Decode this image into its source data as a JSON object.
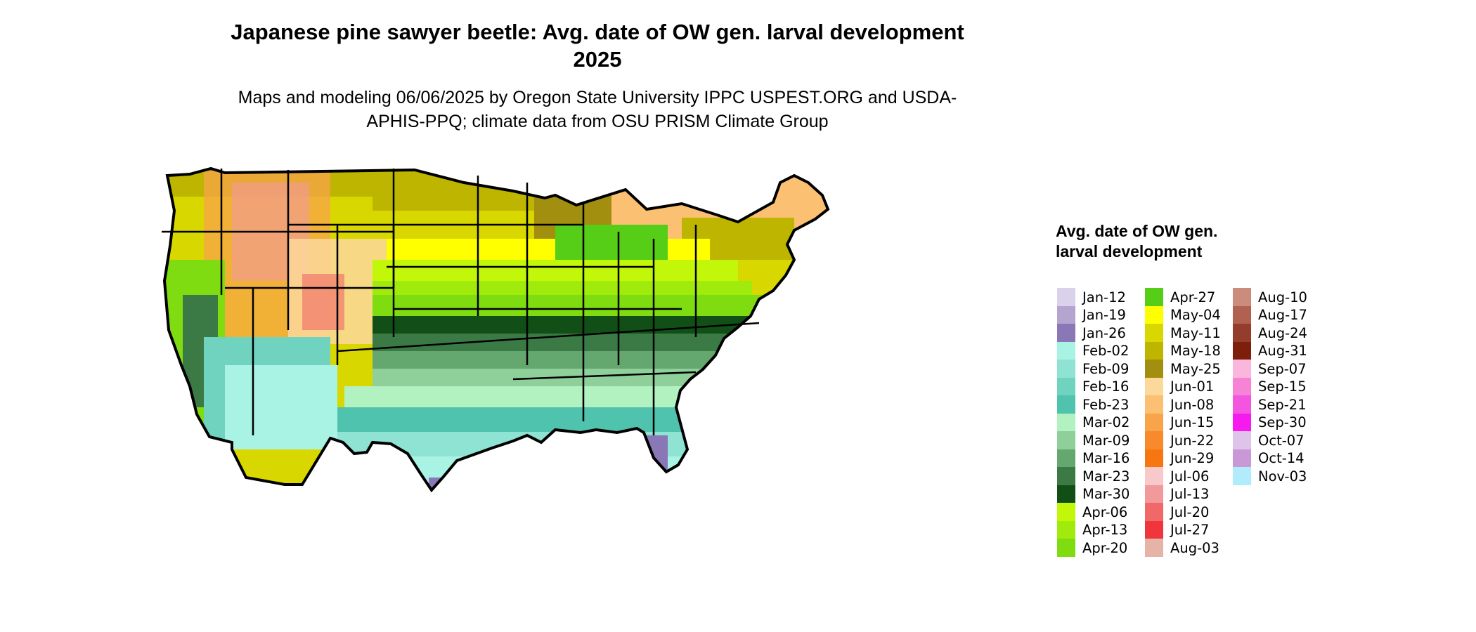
{
  "title": "Japanese pine sawyer beetle: Avg. date of OW gen. larval development 2025",
  "subtitle": "Maps and modeling 06/06/2025 by Oregon State University IPPC USPEST.ORG and USDA-APHIS-PPQ; climate data from OSU PRISM Climate Group",
  "legend": {
    "title": "Avg. date of OW gen. larval development",
    "items": [
      {
        "label": "Jan-12",
        "color": "#d9d2ea"
      },
      {
        "label": "Jan-19",
        "color": "#b3a5cf"
      },
      {
        "label": "Jan-26",
        "color": "#8a77b6"
      },
      {
        "label": "Feb-02",
        "color": "#a9f3e5"
      },
      {
        "label": "Feb-09",
        "color": "#8ee3d2"
      },
      {
        "label": "Feb-16",
        "color": "#6fd3c0"
      },
      {
        "label": "Feb-23",
        "color": "#4fc3ad"
      },
      {
        "label": "Mar-02",
        "color": "#b2f2c0"
      },
      {
        "label": "Mar-09",
        "color": "#8fcf9a"
      },
      {
        "label": "Mar-16",
        "color": "#64a76f"
      },
      {
        "label": "Mar-23",
        "color": "#3b7a45"
      },
      {
        "label": "Mar-30",
        "color": "#124f17"
      },
      {
        "label": "Apr-06",
        "color": "#c3f70a"
      },
      {
        "label": "Apr-13",
        "color": "#a0ea0c"
      },
      {
        "label": "Apr-20",
        "color": "#7edc10"
      },
      {
        "label": "Apr-27",
        "color": "#56cd16"
      },
      {
        "label": "May-04",
        "color": "#ffff00"
      },
      {
        "label": "May-11",
        "color": "#d8d800"
      },
      {
        "label": "May-18",
        "color": "#bdb500"
      },
      {
        "label": "May-25",
        "color": "#a38f0f"
      },
      {
        "label": "Jun-01",
        "color": "#fdd89b"
      },
      {
        "label": "Jun-08",
        "color": "#fbc071"
      },
      {
        "label": "Jun-15",
        "color": "#f9a44a"
      },
      {
        "label": "Jun-22",
        "color": "#f88a2b"
      },
      {
        "label": "Jun-29",
        "color": "#f77612"
      },
      {
        "label": "Jul-06",
        "color": "#f7c9cb"
      },
      {
        "label": "Jul-13",
        "color": "#f2999b"
      },
      {
        "label": "Jul-20",
        "color": "#f06868"
      },
      {
        "label": "Jul-27",
        "color": "#f0363c"
      },
      {
        "label": "Aug-03",
        "color": "#e6b3a8"
      },
      {
        "label": "Aug-10",
        "color": "#cc8c7c"
      },
      {
        "label": "Aug-17",
        "color": "#b0614f"
      },
      {
        "label": "Aug-24",
        "color": "#953d2c"
      },
      {
        "label": "Aug-31",
        "color": "#7e1f0c"
      },
      {
        "label": "Sep-07",
        "color": "#fbb6dd"
      },
      {
        "label": "Sep-15",
        "color": "#f783d6"
      },
      {
        "label": "Sep-21",
        "color": "#f455e0"
      },
      {
        "label": "Sep-30",
        "color": "#f61aef"
      },
      {
        "label": "Oct-07",
        "color": "#dec3ea"
      },
      {
        "label": "Oct-14",
        "color": "#c898d7"
      },
      {
        "label": "Nov-03",
        "color": "#b0ecfc"
      }
    ]
  }
}
